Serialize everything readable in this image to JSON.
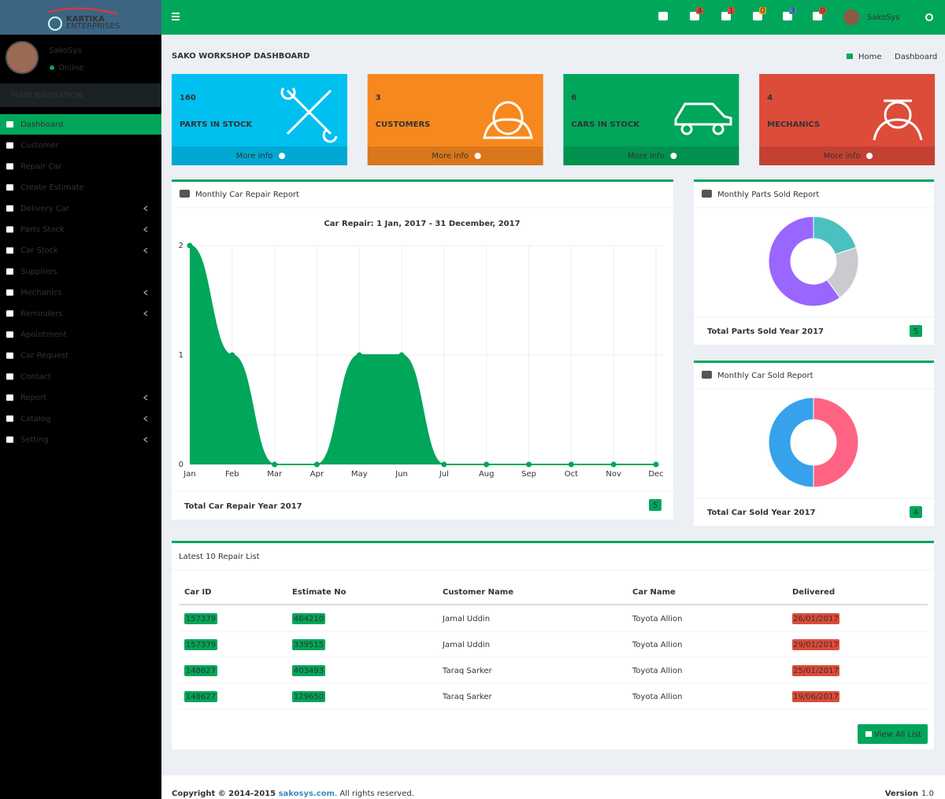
{
  "brand": {
    "line1": "KARTIKA",
    "line2": "ENTERPRISES"
  },
  "topbar": {
    "badges": [
      "4",
      "1",
      "0",
      "3",
      "0"
    ],
    "user": "SakoSys"
  },
  "user": {
    "name": "SakoSys",
    "status": "Online"
  },
  "sidebar": {
    "heading": "MAIN NAVIGATION",
    "active_item": 0,
    "items": [
      {
        "label": "Dashboard",
        "submenu": false
      },
      {
        "label": "Customer",
        "submenu": false
      },
      {
        "label": "Repair Car",
        "submenu": false
      },
      {
        "label": "Create Estimate",
        "submenu": false
      },
      {
        "label": "Delivery Car",
        "submenu": true
      },
      {
        "label": "Parts Stock",
        "submenu": true
      },
      {
        "label": "Car Stock",
        "submenu": true
      },
      {
        "label": "Suppliers",
        "submenu": false
      },
      {
        "label": "Mechanics",
        "submenu": true
      },
      {
        "label": "Reminders",
        "submenu": true
      },
      {
        "label": "Apointment",
        "submenu": false
      },
      {
        "label": "Car Request",
        "submenu": false
      },
      {
        "label": "Contact",
        "submenu": false
      },
      {
        "label": "Report",
        "submenu": true
      },
      {
        "label": "Catalog",
        "submenu": true
      },
      {
        "label": "Setting",
        "submenu": true
      }
    ]
  },
  "header": {
    "title": "SAKO WORKSHOP DASHBOARD",
    "breadcrumb": [
      "Home",
      "Dashboard"
    ]
  },
  "info_boxes": [
    {
      "value": "160",
      "label": "PARTS IN STOCK",
      "link": "More info",
      "color": "#00c0ef"
    },
    {
      "value": "3",
      "label": "CUSTOMERS",
      "link": "More info",
      "color": "#f7881e"
    },
    {
      "value": "6",
      "label": "CARS IN STOCK",
      "link": "More info",
      "color": "#00a65a"
    },
    {
      "value": "4",
      "label": "MECHANICS",
      "link": "More info",
      "color": "#dd4b39"
    }
  ],
  "repair_report": {
    "type": "area",
    "title": "Monthly Car Repair Report",
    "chart_title": "Car Repair: 1 Jan, 2017 - 31 December, 2017",
    "categories": [
      "Jan",
      "Feb",
      "Mar",
      "Apr",
      "May",
      "Jun",
      "Jul",
      "Aug",
      "Sep",
      "Oct",
      "Nov",
      "Dec"
    ],
    "values": [
      2,
      1,
      0,
      0,
      1,
      1,
      0,
      0,
      0,
      0,
      0,
      0
    ],
    "color": "#00a65a",
    "ylim": [
      0,
      2
    ],
    "yticks": [
      0,
      1,
      2
    ],
    "grid": true,
    "footer": "Total Car Repair Year 2017",
    "total": "5"
  },
  "parts_report": {
    "type": "donut",
    "title": "Monthly Parts Sold Report",
    "values": [
      1,
      1,
      3
    ],
    "colors": [
      "#4bc0c0",
      "#c9cbcf",
      "#9966ff"
    ],
    "footer": "Total Parts Sold Year 2017",
    "total": "5"
  },
  "car_report": {
    "type": "donut",
    "title": "Monthly Car Sold Report",
    "values": [
      2,
      2
    ],
    "colors": [
      "#ff6384",
      "#36a2eb"
    ],
    "footer": "Total Car Sold Year 2017",
    "total": "4"
  },
  "table": {
    "title": "Latest 10 Repair List",
    "headers": [
      "Car ID",
      "Estimate No",
      "Customer Name",
      "Car Name",
      "Delivered"
    ],
    "rows": [
      [
        "157379",
        "464210",
        "Jamal Uddin",
        "Toyota Allion",
        "26/01/2017"
      ],
      [
        "157379",
        "339515",
        "Jamal Uddin",
        "Toyota Allion",
        "29/01/2017"
      ],
      [
        "148627",
        "403493",
        "Taraq Sarker",
        "Toyota Allion",
        "25/01/2017"
      ],
      [
        "148627",
        "129650",
        "Taraq Sarker",
        "Toyota Allion",
        "19/06/2017"
      ]
    ],
    "button": "View All List"
  },
  "footer": {
    "copyright": "Copyright © 2014-2015 ",
    "link": "sakosys.com",
    "rights": ". All rights reserved.",
    "version_label": "Version",
    "version": "1.0"
  }
}
